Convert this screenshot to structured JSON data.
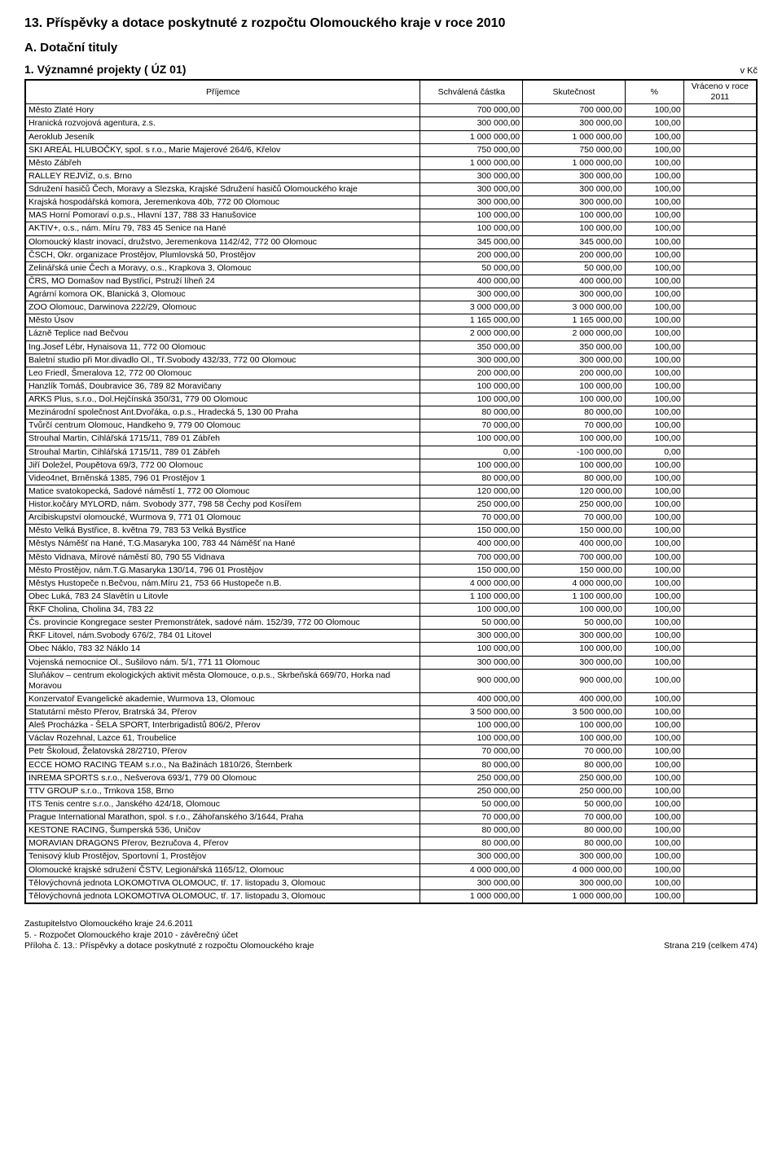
{
  "main_title": "13. Příspěvky a dotace poskytnuté z rozpočtu Olomouckého kraje v roce 2010",
  "sub_title": "A. Dotační tituly",
  "section_title": "1. Významné projekty ( ÚZ 01)",
  "unit": "v Kč",
  "columns": {
    "recipient": "Příjemce",
    "approved": "Schválená částka",
    "actual": "Skutečnost",
    "pct": "%",
    "returned": "Vráceno  v roce 2011"
  },
  "rows": [
    {
      "name": "Město Zlaté Hory",
      "approved": "700 000,00",
      "actual": "700 000,00",
      "pct": "100,00",
      "ret": ""
    },
    {
      "name": "Hranická rozvojová agentura, z.s.",
      "approved": "300 000,00",
      "actual": "300 000,00",
      "pct": "100,00",
      "ret": ""
    },
    {
      "name": "Aeroklub Jeseník",
      "approved": "1 000 000,00",
      "actual": "1 000 000,00",
      "pct": "100,00",
      "ret": ""
    },
    {
      "name": "SKI AREÁL HLUBOČKY, spol. s r.o., Marie Majerové 264/6, Křelov",
      "approved": "750 000,00",
      "actual": "750 000,00",
      "pct": "100,00",
      "ret": ""
    },
    {
      "name": "Město Zábřeh",
      "approved": "1 000 000,00",
      "actual": "1 000 000,00",
      "pct": "100,00",
      "ret": ""
    },
    {
      "name": "RALLEY REJVÍZ, o.s. Brno",
      "approved": "300 000,00",
      "actual": "300 000,00",
      "pct": "100,00",
      "ret": ""
    },
    {
      "name": "Sdružení hasičů Čech, Moravy a Slezska, Krajské Sdružení hasičů Olomouckého kraje",
      "approved": "300 000,00",
      "actual": "300 000,00",
      "pct": "100,00",
      "ret": ""
    },
    {
      "name": "Krajská hospodářská komora, Jeremenkova 40b, 772 00 Olomouc",
      "approved": "300 000,00",
      "actual": "300 000,00",
      "pct": "100,00",
      "ret": ""
    },
    {
      "name": "MAS Horní Pomoraví o.p.s., Hlavní 137, 788 33 Hanušovice",
      "approved": "100 000,00",
      "actual": "100 000,00",
      "pct": "100,00",
      "ret": ""
    },
    {
      "name": "AKTIV+, o.s., nám. Míru 79, 783 45 Senice na Hané",
      "approved": "100 000,00",
      "actual": "100 000,00",
      "pct": "100,00",
      "ret": ""
    },
    {
      "name": "Olomoucký klastr inovací, družstvo, Jeremenkova 1142/42, 772 00 Olomouc",
      "approved": "345 000,00",
      "actual": "345 000,00",
      "pct": "100,00",
      "ret": ""
    },
    {
      "name": "ČSCH, Okr. organizace Prostějov, Plumlovská 50, Prostějov",
      "approved": "200 000,00",
      "actual": "200 000,00",
      "pct": "100,00",
      "ret": ""
    },
    {
      "name": "Zelinářská unie Čech a Moravy, o.s., Krapkova 3, Olomouc",
      "approved": "50 000,00",
      "actual": "50 000,00",
      "pct": "100,00",
      "ret": ""
    },
    {
      "name": "ČRS, MO Domašov nad Bystřicí, Pstruží líheň 24",
      "approved": "400 000,00",
      "actual": "400 000,00",
      "pct": "100,00",
      "ret": ""
    },
    {
      "name": "Agrární komora OK, Blanická 3, Olomouc",
      "approved": "300 000,00",
      "actual": "300 000,00",
      "pct": "100,00",
      "ret": ""
    },
    {
      "name": "ZOO Olomouc, Darwinova 222/29, Olomouc",
      "approved": "3 000 000,00",
      "actual": "3 000 000,00",
      "pct": "100,00",
      "ret": ""
    },
    {
      "name": "Město Úsov",
      "approved": "1 165 000,00",
      "actual": "1 165 000,00",
      "pct": "100,00",
      "ret": ""
    },
    {
      "name": "Lázně Teplice nad Bečvou",
      "approved": "2 000 000,00",
      "actual": "2 000 000,00",
      "pct": "100,00",
      "ret": ""
    },
    {
      "name": "Ing.Josef Lébr, Hynaisova 11, 772 00 Olomouc",
      "approved": "350 000,00",
      "actual": "350 000,00",
      "pct": "100,00",
      "ret": ""
    },
    {
      "name": "Baletní studio při Mor.divadlo Ol., Tř.Svobody 432/33, 772 00 Olomouc",
      "approved": "300 000,00",
      "actual": "300 000,00",
      "pct": "100,00",
      "ret": ""
    },
    {
      "name": "Leo Friedl, Šmeralova 12, 772 00 Olomouc",
      "approved": "200 000,00",
      "actual": "200 000,00",
      "pct": "100,00",
      "ret": ""
    },
    {
      "name": "Hanzlík Tomáš, Doubravice 36, 789 82 Moravičany",
      "approved": "100 000,00",
      "actual": "100 000,00",
      "pct": "100,00",
      "ret": ""
    },
    {
      "name": "ARKS Plus, s.r.o., Dol.Hejčínská 350/31, 779 00 Olomouc",
      "approved": "100 000,00",
      "actual": "100 000,00",
      "pct": "100,00",
      "ret": ""
    },
    {
      "name": "Mezinárodní společnost Ant.Dvořáka, o.p.s., Hradecká 5, 130 00 Praha",
      "approved": "80 000,00",
      "actual": "80 000,00",
      "pct": "100,00",
      "ret": ""
    },
    {
      "name": "Tvůrčí centrum Olomouc, Handkeho  9, 779 00 Olomouc",
      "approved": "70 000,00",
      "actual": "70 000,00",
      "pct": "100,00",
      "ret": ""
    },
    {
      "name": "Strouhal Martin, Cihlářská 1715/11, 789 01 Zábřeh",
      "approved": "100 000,00",
      "actual": "100 000,00",
      "pct": "100,00",
      "ret": ""
    },
    {
      "name": "Strouhal Martin, Cihlářská 1715/11, 789 01 Zábřeh",
      "approved": "0,00",
      "actual": "-100 000,00",
      "pct": "0,00",
      "ret": ""
    },
    {
      "name": "Jiří Doležel, Poupětova 69/3, 772 00 Olomouc",
      "approved": "100 000,00",
      "actual": "100 000,00",
      "pct": "100,00",
      "ret": ""
    },
    {
      "name": "Video4net, Brněnská 1385, 796 01 Prostějov 1",
      "approved": "80 000,00",
      "actual": "80 000,00",
      "pct": "100,00",
      "ret": ""
    },
    {
      "name": "Matice svatokopecká, Sadové náměstí 1,  772 00 Olomouc",
      "approved": "120 000,00",
      "actual": "120 000,00",
      "pct": "100,00",
      "ret": ""
    },
    {
      "name": "Histor.kočáry MYLORD, nám. Svobody 377, 798 58 Čechy pod Kosířem",
      "approved": "250 000,00",
      "actual": "250 000,00",
      "pct": "100,00",
      "ret": ""
    },
    {
      "name": "Arcibiskupství olomoucké, Wurmova 9, 771 01 Olomouc",
      "approved": "70 000,00",
      "actual": "70 000,00",
      "pct": "100,00",
      "ret": ""
    },
    {
      "name": "Město Velká Bystřice, 8. května 79, 783 53 Velká Bystřice",
      "approved": "150 000,00",
      "actual": "150 000,00",
      "pct": "100,00",
      "ret": ""
    },
    {
      "name": "Městys Náměšť na Hané, T.G.Masaryka 100, 783 44 Náměšť na Hané",
      "approved": "400 000,00",
      "actual": "400 000,00",
      "pct": "100,00",
      "ret": ""
    },
    {
      "name": "Město Vidnava, Mírové náměstí 80, 790 55 Vidnava",
      "approved": "700 000,00",
      "actual": "700 000,00",
      "pct": "100,00",
      "ret": ""
    },
    {
      "name": "Město Prostějov, nám.T.G.Masaryka 130/14, 796 01 Prostějov",
      "approved": "150 000,00",
      "actual": "150 000,00",
      "pct": "100,00",
      "ret": ""
    },
    {
      "name": "Městys Hustopeče n.Bečvou, nám.Míru 21, 753 66 Hustopeče n.B.",
      "approved": "4 000 000,00",
      "actual": "4 000 000,00",
      "pct": "100,00",
      "ret": ""
    },
    {
      "name": "Obec Luká, 783 24 Slavětín u Litovle",
      "approved": "1 100 000,00",
      "actual": "1 100 000,00",
      "pct": "100,00",
      "ret": ""
    },
    {
      "name": "ŘKF Cholina, Cholina 34, 783 22",
      "approved": "100 000,00",
      "actual": "100 000,00",
      "pct": "100,00",
      "ret": ""
    },
    {
      "name": "Čs. provincie Kongregace sester Premonstrátek, sadové nám. 152/39, 772 00 Olomouc",
      "approved": "50 000,00",
      "actual": "50 000,00",
      "pct": "100,00",
      "ret": ""
    },
    {
      "name": "ŘKF Litovel, nám.Svobody 676/2, 784 01 Litovel",
      "approved": "300 000,00",
      "actual": "300 000,00",
      "pct": "100,00",
      "ret": ""
    },
    {
      "name": "Obec Náklo, 783 32 Náklo 14",
      "approved": "100 000,00",
      "actual": "100 000,00",
      "pct": "100,00",
      "ret": ""
    },
    {
      "name": "Vojenská nemocnice Ol., Sušilovo nám. 5/1, 771 11 Olomouc",
      "approved": "300 000,00",
      "actual": "300 000,00",
      "pct": "100,00",
      "ret": ""
    },
    {
      "name": "Sluňákov – centrum ekologických aktivit města Olomouce, o.p.s., Skrbeňská 669/70, Horka nad Moravou",
      "approved": "900 000,00",
      "actual": "900 000,00",
      "pct": "100,00",
      "ret": ""
    },
    {
      "name": "Konzervatoř Evangelické akademie, Wurmova 13, Olomouc",
      "approved": "400 000,00",
      "actual": "400 000,00",
      "pct": "100,00",
      "ret": ""
    },
    {
      "name": "Statutární město Přerov, Bratrská 34, Přerov",
      "approved": "3 500 000,00",
      "actual": "3 500 000,00",
      "pct": "100,00",
      "ret": ""
    },
    {
      "name": "Aleš Procházka - ŠELA SPORT, Interbrigadistů 806/2, Přerov",
      "approved": "100 000,00",
      "actual": "100 000,00",
      "pct": "100,00",
      "ret": ""
    },
    {
      "name": "Václav Rozehnal, Lazce 61, Troubelice",
      "approved": "100 000,00",
      "actual": "100 000,00",
      "pct": "100,00",
      "ret": ""
    },
    {
      "name": "Petr Školoud, Želatovská 28/2710, Přerov",
      "approved": "70 000,00",
      "actual": "70 000,00",
      "pct": "100,00",
      "ret": ""
    },
    {
      "name": "ECCE HOMO RACING TEAM s.r.o., Na Bažinách 1810/26, Šternberk",
      "approved": "80 000,00",
      "actual": "80 000,00",
      "pct": "100,00",
      "ret": ""
    },
    {
      "name": "INREMA SPORTS s.r.o., Nešverova 693/1, 779 00 Olomouc",
      "approved": "250 000,00",
      "actual": "250 000,00",
      "pct": "100,00",
      "ret": ""
    },
    {
      "name": "TTV GROUP s.r.o., Trnkova 158, Brno",
      "approved": "250 000,00",
      "actual": "250 000,00",
      "pct": "100,00",
      "ret": ""
    },
    {
      "name": "ITS Tenis centre s.r.o., Janského 424/18, Olomouc",
      "approved": "50 000,00",
      "actual": "50 000,00",
      "pct": "100,00",
      "ret": ""
    },
    {
      "name": "Prague International Marathon, spol. s r.o., Záhořanského 3/1644, Praha",
      "approved": "70 000,00",
      "actual": "70 000,00",
      "pct": "100,00",
      "ret": ""
    },
    {
      "name": "KESTONE RACING, Šumperská 536, Uničov",
      "approved": "80 000,00",
      "actual": "80 000,00",
      "pct": "100,00",
      "ret": ""
    },
    {
      "name": "MORAVIAN DRAGONS Přerov, Bezručova 4, Přerov",
      "approved": "80 000,00",
      "actual": "80 000,00",
      "pct": "100,00",
      "ret": ""
    },
    {
      "name": "Tenisový klub Prostějov, Sportovní 1, Prostějov",
      "approved": "300 000,00",
      "actual": "300 000,00",
      "pct": "100,00",
      "ret": ""
    },
    {
      "name": "Olomoucké krajské sdružení ČSTV, Legionářská 1165/12, Olomouc",
      "approved": "4 000 000,00",
      "actual": "4 000 000,00",
      "pct": "100,00",
      "ret": ""
    },
    {
      "name": "Tělovýchovná jednota LOKOMOTIVA OLOMOUC, tř. 17. listopadu 3, Olomouc",
      "approved": "300 000,00",
      "actual": "300 000,00",
      "pct": "100,00",
      "ret": ""
    },
    {
      "name": "Tělovýchovná jednota LOKOMOTIVA OLOMOUC, tř. 17. listopadu 3, Olomouc",
      "approved": "1 000 000,00",
      "actual": "1 000 000,00",
      "pct": "100,00",
      "ret": ""
    }
  ],
  "footer": {
    "line1": "Zastupitelstvo Olomouckého kraje 24.6.2011",
    "line2": "5. - Rozpočet Olomouckého kraje 2010 - závěrečný účet",
    "line3_left": "Příloha č. 13.: Příspěvky a dotace poskytnuté z rozpočtu Olomouckého kraje",
    "line3_right": "Strana 219 (celkem 474)"
  },
  "style": {
    "background_color": "#ffffff",
    "text_color": "#000000",
    "border_color": "#000000",
    "font_family": "Arial, Helvetica, sans-serif",
    "title_fontsize": 16,
    "subtitle_fontsize": 15,
    "section_fontsize": 14,
    "body_fontsize": 10.5
  }
}
